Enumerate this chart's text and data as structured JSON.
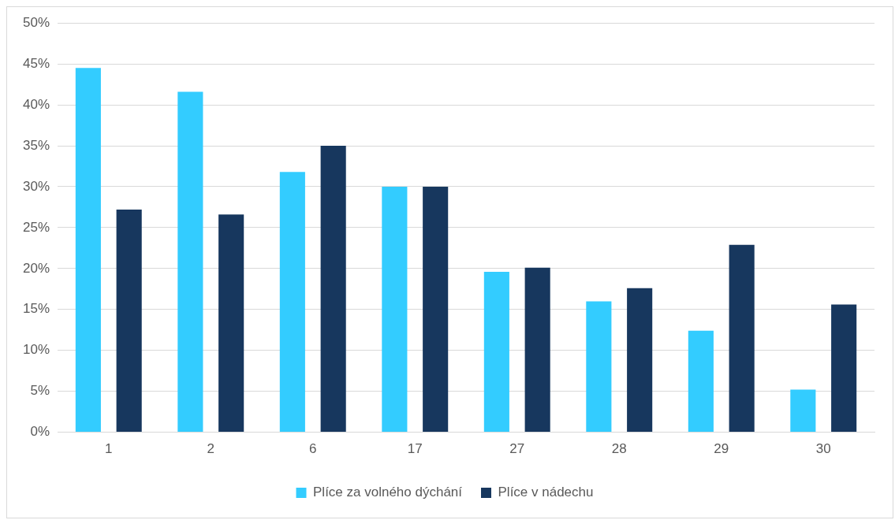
{
  "chart_data": {
    "type": "bar",
    "categories": [
      "1",
      "2",
      "6",
      "17",
      "27",
      "28",
      "29",
      "30"
    ],
    "series": [
      {
        "name": "Plíce za volného dýchání",
        "color": "#33ccff",
        "values": [
          44.5,
          41.6,
          31.8,
          30,
          19.6,
          16,
          12.4,
          5.2
        ]
      },
      {
        "name": "Plíce v nádechu",
        "color": "#17375e",
        "values": [
          27.2,
          26.6,
          35,
          30,
          20.1,
          17.6,
          22.9,
          15.6
        ]
      }
    ],
    "ylim": [
      0,
      50
    ],
    "yticks": [
      {
        "value": 0,
        "label": "0%"
      },
      {
        "value": 5,
        "label": "5%"
      },
      {
        "value": 10,
        "label": "10%"
      },
      {
        "value": 15,
        "label": "15%"
      },
      {
        "value": 20,
        "label": "20%"
      },
      {
        "value": 25,
        "label": "25%"
      },
      {
        "value": 30,
        "label": "30%"
      },
      {
        "value": 35,
        "label": "35%"
      },
      {
        "value": 40,
        "label": "40%"
      },
      {
        "value": 45,
        "label": "45%"
      },
      {
        "value": 50,
        "label": "50%"
      }
    ],
    "grid": "y",
    "legend": "bottom"
  }
}
